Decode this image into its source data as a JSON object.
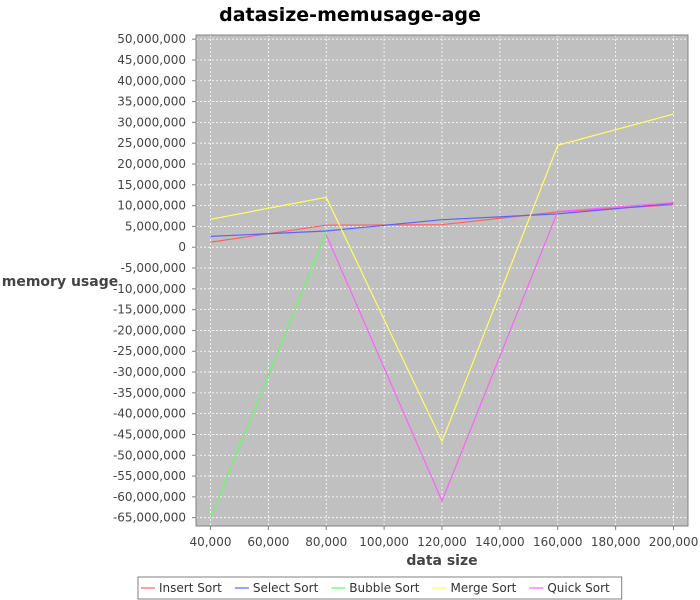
{
  "chart_data": {
    "type": "line",
    "title": "datasize-memusage-age",
    "xlabel": "data size",
    "ylabel": "memory usage",
    "xlim": [
      35000,
      205000
    ],
    "ylim": [
      -67000000,
      51000000
    ],
    "x": [
      40000,
      80000,
      120000,
      160000,
      200000
    ],
    "x_ticks": [
      40000,
      60000,
      80000,
      100000,
      120000,
      140000,
      160000,
      180000,
      200000
    ],
    "x_tick_labels": [
      "40,000",
      "60,000",
      "80,000",
      "100,000",
      "120,000",
      "140,000",
      "160,000",
      "180,000",
      "200,000"
    ],
    "y_ticks": [
      50000000,
      45000000,
      40000000,
      35000000,
      30000000,
      25000000,
      20000000,
      15000000,
      10000000,
      5000000,
      0,
      -5000000,
      -10000000,
      -15000000,
      -20000000,
      -25000000,
      -30000000,
      -35000000,
      -40000000,
      -45000000,
      -50000000,
      -55000000,
      -60000000,
      -65000000
    ],
    "y_tick_labels": [
      "50,000,000",
      "45,000,000",
      "40,000,000",
      "35,000,000",
      "30,000,000",
      "25,000,000",
      "20,000,000",
      "15,000,000",
      "10,000,000",
      "5,000,000",
      "0",
      "-5,000,000",
      "-10,000,000",
      "-15,000,000",
      "-20,000,000",
      "-25,000,000",
      "-30,000,000",
      "-35,000,000",
      "-40,000,000",
      "-45,000,000",
      "-50,000,000",
      "-55,000,000",
      "-60,000,000",
      "-65,000,000"
    ],
    "grid": true,
    "legend_position": "bottom",
    "plot_background": "#c0c0c0",
    "grid_color": "#ffffff",
    "series": [
      {
        "name": "Insert Sort",
        "color": "#ff6060",
        "values": [
          1200000,
          5300000,
          5400000,
          8500000,
          10200000
        ]
      },
      {
        "name": "Select Sort",
        "color": "#6060ff",
        "values": [
          2600000,
          3900000,
          6600000,
          8000000,
          10500000
        ]
      },
      {
        "name": "Bubble Sort",
        "color": "#60ff60",
        "values": [
          -65000000,
          3500000,
          null,
          null,
          null
        ]
      },
      {
        "name": "Merge Sort",
        "color": "#ffff60",
        "values": [
          6700000,
          12000000,
          -46700000,
          24500000,
          32000000
        ]
      },
      {
        "name": "Quick Sort",
        "color": "#ff60ff",
        "values": [
          null,
          3000000,
          -61000000,
          8600000,
          10700000
        ]
      }
    ]
  }
}
